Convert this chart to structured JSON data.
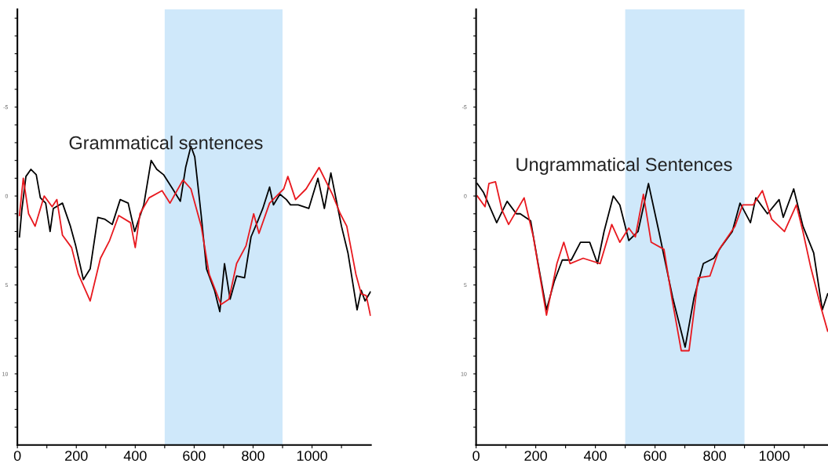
{
  "chart_data": [
    {
      "type": "line",
      "title": "Grammatical sentences",
      "xlim": [
        0,
        1200
      ],
      "ylim": [
        14,
        -10.5
      ],
      "xticks": [
        0,
        {
          "value": 100,
          "label": null
        },
        200,
        {
          "value": 300,
          "label": null
        },
        400,
        {
          "value": 500,
          "label": null
        },
        600,
        {
          "value": 700,
          "label": null
        },
        800,
        {
          "value": 900,
          "label": null
        },
        1000,
        {
          "value": 1100,
          "label": null
        }
      ],
      "yticks": [
        {
          "value": -10,
          "label": null
        },
        {
          "value": -9,
          "label": null
        },
        {
          "value": -8,
          "label": null
        },
        {
          "value": -7,
          "label": null
        },
        {
          "value": -6,
          "label": null
        },
        -5,
        {
          "value": -4,
          "label": null
        },
        {
          "value": -3,
          "label": null
        },
        {
          "value": -2,
          "label": null
        },
        {
          "value": -1,
          "label": null
        },
        0,
        {
          "value": 1,
          "label": null
        },
        {
          "value": 2,
          "label": null
        },
        {
          "value": 3,
          "label": null
        },
        {
          "value": 4,
          "label": null
        },
        5,
        {
          "value": 6,
          "label": null
        },
        {
          "value": 7,
          "label": null
        },
        {
          "value": 8,
          "label": null
        },
        {
          "value": 9,
          "label": null
        },
        10,
        {
          "value": 11,
          "label": null
        },
        {
          "value": 12,
          "label": null
        },
        {
          "value": 13,
          "label": null
        }
      ],
      "bands": [
        {
          "axis": "x",
          "from": 500,
          "to": 900,
          "color": "#cfe8fa"
        }
      ],
      "series": [
        {
          "color": "#000000",
          "x": [
            7,
            15,
            29,
            46,
            64,
            78,
            96,
            111,
            122,
            153,
            180,
            198,
            224,
            247,
            273,
            296,
            322,
            349,
            376,
            398,
            429,
            454,
            473,
            496,
            527,
            553,
            571,
            589,
            602,
            624,
            642,
            669,
            687,
            703,
            722,
            744,
            771,
            793,
            816,
            833,
            856,
            869,
            891,
            913,
            927,
            953,
            989,
            1020,
            1042,
            1064,
            1100,
            1122,
            1153,
            1167,
            1180,
            1198
          ],
          "values": [
            2.3,
            0.8,
            -1.1,
            -1.5,
            -1.2,
            0.1,
            0.4,
            2.0,
            0.7,
            0.4,
            1.7,
            2.8,
            4.7,
            4.1,
            1.2,
            1.3,
            1.6,
            0.2,
            0.4,
            2.0,
            0.5,
            -2.0,
            -1.5,
            -1.2,
            -0.4,
            0.3,
            -1.6,
            -2.8,
            -2.2,
            1.1,
            4.1,
            5.3,
            6.5,
            3.8,
            5.8,
            4.5,
            4.6,
            2.3,
            1.4,
            0.7,
            -0.5,
            0.5,
            -0.1,
            0.2,
            0.5,
            0.5,
            0.7,
            -1.0,
            0.7,
            -1.3,
            1.7,
            3.2,
            6.4,
            5.3,
            5.9,
            5.4
          ]
        },
        {
          "color": "#e8191f",
          "x": [
            7,
            20,
            38,
            60,
            91,
            118,
            134,
            153,
            184,
            207,
            247,
            282,
            313,
            344,
            384,
            400,
            416,
            447,
            491,
            518,
            562,
            589,
            624,
            651,
            691,
            718,
            744,
            776,
            802,
            820,
            856,
            904,
            918,
            944,
            980,
            1024,
            1069,
            1096,
            1118,
            1149,
            1167,
            1184,
            1198
          ],
          "values": [
            1.1,
            -1.0,
            1.0,
            1.7,
            0.0,
            0.6,
            0.2,
            2.2,
            2.9,
            4.4,
            5.9,
            3.5,
            2.5,
            1.1,
            1.5,
            2.9,
            1.0,
            0.1,
            -0.3,
            0.4,
            -0.9,
            -0.4,
            1.7,
            4.4,
            6.1,
            5.8,
            3.8,
            2.8,
            1.0,
            2.1,
            0.4,
            -0.4,
            -1.1,
            0.2,
            -0.4,
            -1.6,
            -0.1,
            1.0,
            1.7,
            4.4,
            5.5,
            5.6,
            6.7
          ]
        }
      ]
    },
    {
      "type": "line",
      "title": "Ungrammatical Sentences",
      "xlim": [
        0,
        1180
      ],
      "ylim": [
        14,
        -10.5
      ],
      "xticks": [
        0,
        {
          "value": 100,
          "label": null
        },
        200,
        {
          "value": 300,
          "label": null
        },
        400,
        {
          "value": 500,
          "label": null
        },
        600,
        {
          "value": 700,
          "label": null
        },
        800,
        {
          "value": 900,
          "label": null
        },
        1000,
        {
          "value": 1100,
          "label": null
        }
      ],
      "yticks": [
        {
          "value": -10,
          "label": null
        },
        {
          "value": -9,
          "label": null
        },
        {
          "value": -8,
          "label": null
        },
        {
          "value": -7,
          "label": null
        },
        {
          "value": -6,
          "label": null
        },
        -5,
        {
          "value": -4,
          "label": null
        },
        {
          "value": -3,
          "label": null
        },
        {
          "value": -2,
          "label": null
        },
        {
          "value": -1,
          "label": null
        },
        0,
        {
          "value": 1,
          "label": null
        },
        {
          "value": 2,
          "label": null
        },
        {
          "value": 3,
          "label": null
        },
        {
          "value": 4,
          "label": null
        },
        5,
        {
          "value": 6,
          "label": null
        },
        {
          "value": 7,
          "label": null
        },
        {
          "value": 8,
          "label": null
        },
        {
          "value": 9,
          "label": null
        },
        10,
        {
          "value": 11,
          "label": null
        },
        {
          "value": 12,
          "label": null
        },
        {
          "value": 13,
          "label": null
        }
      ],
      "bands": [
        {
          "axis": "x",
          "from": 500,
          "to": 900,
          "color": "#cfe8fa"
        }
      ],
      "series": [
        {
          "color": "#000000",
          "x": [
            4,
            25,
            69,
            104,
            135,
            148,
            183,
            210,
            236,
            262,
            289,
            319,
            350,
            381,
            407,
            429,
            460,
            482,
            512,
            543,
            578,
            613,
            659,
            701,
            731,
            762,
            797,
            824,
            859,
            885,
            920,
            938,
            977,
            1016,
            1030,
            1065,
            1096,
            1132,
            1161,
            1179
          ],
          "values": [
            -0.7,
            -0.2,
            1.5,
            0.3,
            1.0,
            1.0,
            1.4,
            4.0,
            6.4,
            4.8,
            3.6,
            3.6,
            2.6,
            2.6,
            3.8,
            2.0,
            0.0,
            0.5,
            2.5,
            2.0,
            -0.7,
            2.0,
            5.7,
            8.5,
            5.7,
            3.8,
            3.5,
            2.8,
            2.0,
            0.4,
            1.5,
            0.1,
            1.0,
            0.2,
            1.2,
            -0.4,
            1.7,
            3.2,
            6.4,
            5.5
          ]
        },
        {
          "color": "#e8191f",
          "x": [
            4,
            30,
            43,
            65,
            87,
            109,
            161,
            192,
            236,
            271,
            294,
            315,
            359,
            416,
            455,
            482,
            512,
            534,
            561,
            587,
            630,
            657,
            688,
            714,
            745,
            784,
            815,
            868,
            894,
            929,
            960,
            991,
            1034,
            1074,
            1096,
            1122,
            1157,
            1179
          ],
          "values": [
            0.0,
            0.6,
            -0.7,
            -0.8,
            0.8,
            1.6,
            0.1,
            2.3,
            6.7,
            3.8,
            2.6,
            3.8,
            3.5,
            3.8,
            1.6,
            2.6,
            1.8,
            2.3,
            -0.1,
            2.6,
            3.0,
            5.8,
            8.7,
            8.7,
            4.6,
            4.5,
            3.0,
            1.7,
            0.5,
            0.5,
            -0.3,
            1.3,
            2.0,
            0.5,
            2.0,
            4.0,
            6.3,
            7.6
          ]
        }
      ]
    }
  ]
}
